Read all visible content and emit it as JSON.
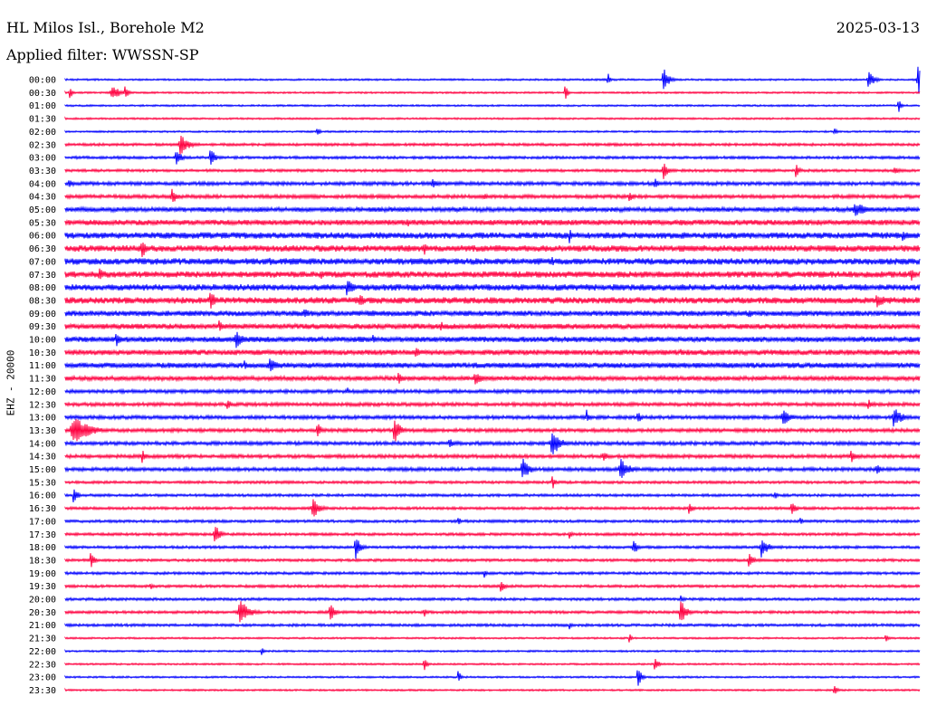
{
  "header": {
    "station": "HL Milos Isl., Borehole M2",
    "date": "2025-03-13",
    "filter": "Applied filter: WWSSN-SP"
  },
  "y_axis_label": "EHZ - 20000",
  "colors": {
    "odd_trace": "#0000ff",
    "even_trace": "#ff0040"
  },
  "chart_data": {
    "type": "line",
    "title": "HL Milos Isl., Borehole M2",
    "subtitle": "Applied filter: WWSSN-SP",
    "ylabel": "EHZ - 20000",
    "grid": false,
    "row_interval_minutes": 30,
    "rows": [
      "00:00",
      "00:30",
      "01:00",
      "01:30",
      "02:00",
      "02:30",
      "03:00",
      "03:30",
      "04:00",
      "04:30",
      "05:00",
      "05:30",
      "06:00",
      "06:30",
      "07:00",
      "07:30",
      "08:00",
      "08:30",
      "09:00",
      "09:30",
      "10:00",
      "10:30",
      "11:00",
      "11:30",
      "12:00",
      "12:30",
      "13:00",
      "13:30",
      "14:00",
      "14:30",
      "15:00",
      "15:30",
      "16:00",
      "16:30",
      "17:00",
      "17:30",
      "18:00",
      "18:30",
      "19:00",
      "19:30",
      "20:00",
      "20:30",
      "21:00",
      "21:30",
      "22:00",
      "22:30",
      "23:00",
      "23:30"
    ],
    "noise_level": [
      1,
      1,
      1,
      1,
      1,
      1.5,
      1.5,
      1.5,
      2,
      2,
      2.5,
      3,
      3.5,
      3.5,
      3.5,
      3.5,
      3.5,
      3.5,
      3,
      3,
      3,
      3,
      3,
      2.5,
      2,
      2,
      2,
      2,
      2,
      2,
      2,
      1.5,
      1.5,
      1.5,
      1.5,
      1.5,
      1.5,
      1.5,
      1.5,
      1.5,
      1.5,
      1.5,
      1.5,
      1,
      1,
      1,
      1,
      1
    ],
    "events": [
      [
        [
          0.635,
          10,
          1.5
        ],
        [
          0.7,
          14,
          4
        ],
        [
          0.94,
          12,
          4
        ],
        [
          0.998,
          20,
          3
        ]
      ],
      [
        [
          0.005,
          9,
          2
        ],
        [
          0.055,
          9,
          6
        ],
        [
          0.07,
          7,
          3
        ],
        [
          0.585,
          9,
          2
        ]
      ],
      [
        [
          0.975,
          9,
          2
        ]
      ],
      [],
      [
        [
          0.295,
          6,
          2
        ],
        [
          0.9,
          5,
          2
        ]
      ],
      [
        [
          0.135,
          12,
          6
        ]
      ],
      [
        [
          0.13,
          8,
          5
        ],
        [
          0.17,
          14,
          3
        ]
      ],
      [
        [
          0.7,
          12,
          3
        ],
        [
          0.855,
          8,
          3
        ],
        [
          0.97,
          5,
          4
        ]
      ],
      [
        [
          0.005,
          5,
          4
        ],
        [
          0.43,
          7,
          5
        ],
        [
          0.69,
          7,
          3
        ]
      ],
      [
        [
          0.125,
          9,
          4
        ],
        [
          0.49,
          5,
          3
        ],
        [
          0.66,
          6,
          4
        ]
      ],
      [
        [
          0.925,
          8,
          10
        ]
      ],
      [
        [
          0.4,
          6,
          3
        ],
        [
          0.72,
          5,
          3
        ]
      ],
      [
        [
          0.59,
          9,
          2
        ],
        [
          0.98,
          7,
          4
        ]
      ],
      [
        [
          0.09,
          11,
          4
        ],
        [
          0.42,
          8,
          3
        ]
      ],
      [
        [
          0.24,
          6,
          3
        ],
        [
          0.57,
          5,
          3
        ]
      ],
      [
        [
          0.04,
          8,
          5
        ],
        [
          0.3,
          6,
          3
        ],
        [
          0.99,
          10,
          3
        ]
      ],
      [
        [
          0.33,
          10,
          5
        ]
      ],
      [
        [
          0.17,
          12,
          4
        ],
        [
          0.345,
          10,
          3
        ],
        [
          0.95,
          8,
          8
        ]
      ],
      [
        [
          0.28,
          7,
          4
        ],
        [
          0.36,
          6,
          3
        ],
        [
          0.8,
          6,
          3
        ]
      ],
      [
        [
          0.18,
          10,
          2
        ],
        [
          0.44,
          6,
          3
        ]
      ],
      [
        [
          0.06,
          8,
          4
        ],
        [
          0.2,
          10,
          6
        ],
        [
          0.36,
          6,
          3
        ],
        [
          0.67,
          6,
          2
        ]
      ],
      [
        [
          0.41,
          8,
          3
        ],
        [
          0.72,
          6,
          2
        ]
      ],
      [
        [
          0.24,
          9,
          6
        ],
        [
          0.21,
          7,
          2
        ]
      ],
      [
        [
          0.39,
          7,
          4
        ],
        [
          0.48,
          8,
          6
        ]
      ],
      [
        [
          0.33,
          5,
          2
        ]
      ],
      [
        [
          0.19,
          8,
          2
        ],
        [
          0.94,
          6,
          3
        ]
      ],
      [
        [
          0.61,
          9,
          2
        ],
        [
          0.67,
          8,
          3
        ],
        [
          0.84,
          10,
          6
        ],
        [
          0.97,
          12,
          6
        ]
      ],
      [
        [
          0.01,
          16,
          12
        ],
        [
          0.295,
          10,
          3
        ],
        [
          0.385,
          18,
          4
        ]
      ],
      [
        [
          0.45,
          6,
          4
        ],
        [
          0.57,
          16,
          6
        ]
      ],
      [
        [
          0.09,
          8,
          3
        ],
        [
          0.63,
          8,
          3
        ],
        [
          0.92,
          8,
          4
        ]
      ],
      [
        [
          0.535,
          14,
          5
        ],
        [
          0.65,
          12,
          7
        ],
        [
          0.95,
          8,
          3
        ]
      ],
      [
        [
          0.57,
          10,
          2
        ]
      ],
      [
        [
          0.01,
          10,
          3
        ],
        [
          0.83,
          6,
          2
        ]
      ],
      [
        [
          0.29,
          12,
          5
        ],
        [
          0.73,
          8,
          3
        ],
        [
          0.85,
          8,
          4
        ]
      ],
      [
        [
          0.46,
          6,
          2
        ],
        [
          0.86,
          6,
          2
        ]
      ],
      [
        [
          0.175,
          12,
          4
        ],
        [
          0.59,
          6,
          2
        ]
      ],
      [
        [
          0.34,
          14,
          4
        ],
        [
          0.665,
          10,
          3
        ],
        [
          0.815,
          12,
          5
        ]
      ],
      [
        [
          0.03,
          10,
          3
        ],
        [
          0.8,
          8,
          4
        ]
      ],
      [
        [
          0.49,
          6,
          2
        ]
      ],
      [
        [
          0.51,
          8,
          3
        ],
        [
          0.1,
          5,
          2
        ]
      ],
      [
        [
          0.72,
          6,
          2
        ]
      ],
      [
        [
          0.205,
          14,
          7
        ],
        [
          0.31,
          10,
          4
        ],
        [
          0.42,
          6,
          2
        ],
        [
          0.72,
          16,
          4
        ]
      ],
      [
        [
          0.59,
          5,
          2
        ]
      ],
      [
        [
          0.66,
          6,
          2
        ],
        [
          0.96,
          6,
          2
        ]
      ],
      [
        [
          0.23,
          5,
          2
        ]
      ],
      [
        [
          0.42,
          9,
          2
        ],
        [
          0.69,
          8,
          3
        ]
      ],
      [
        [
          0.46,
          8,
          2
        ],
        [
          0.67,
          12,
          3
        ]
      ],
      [
        [
          0.9,
          9,
          2
        ]
      ]
    ]
  }
}
